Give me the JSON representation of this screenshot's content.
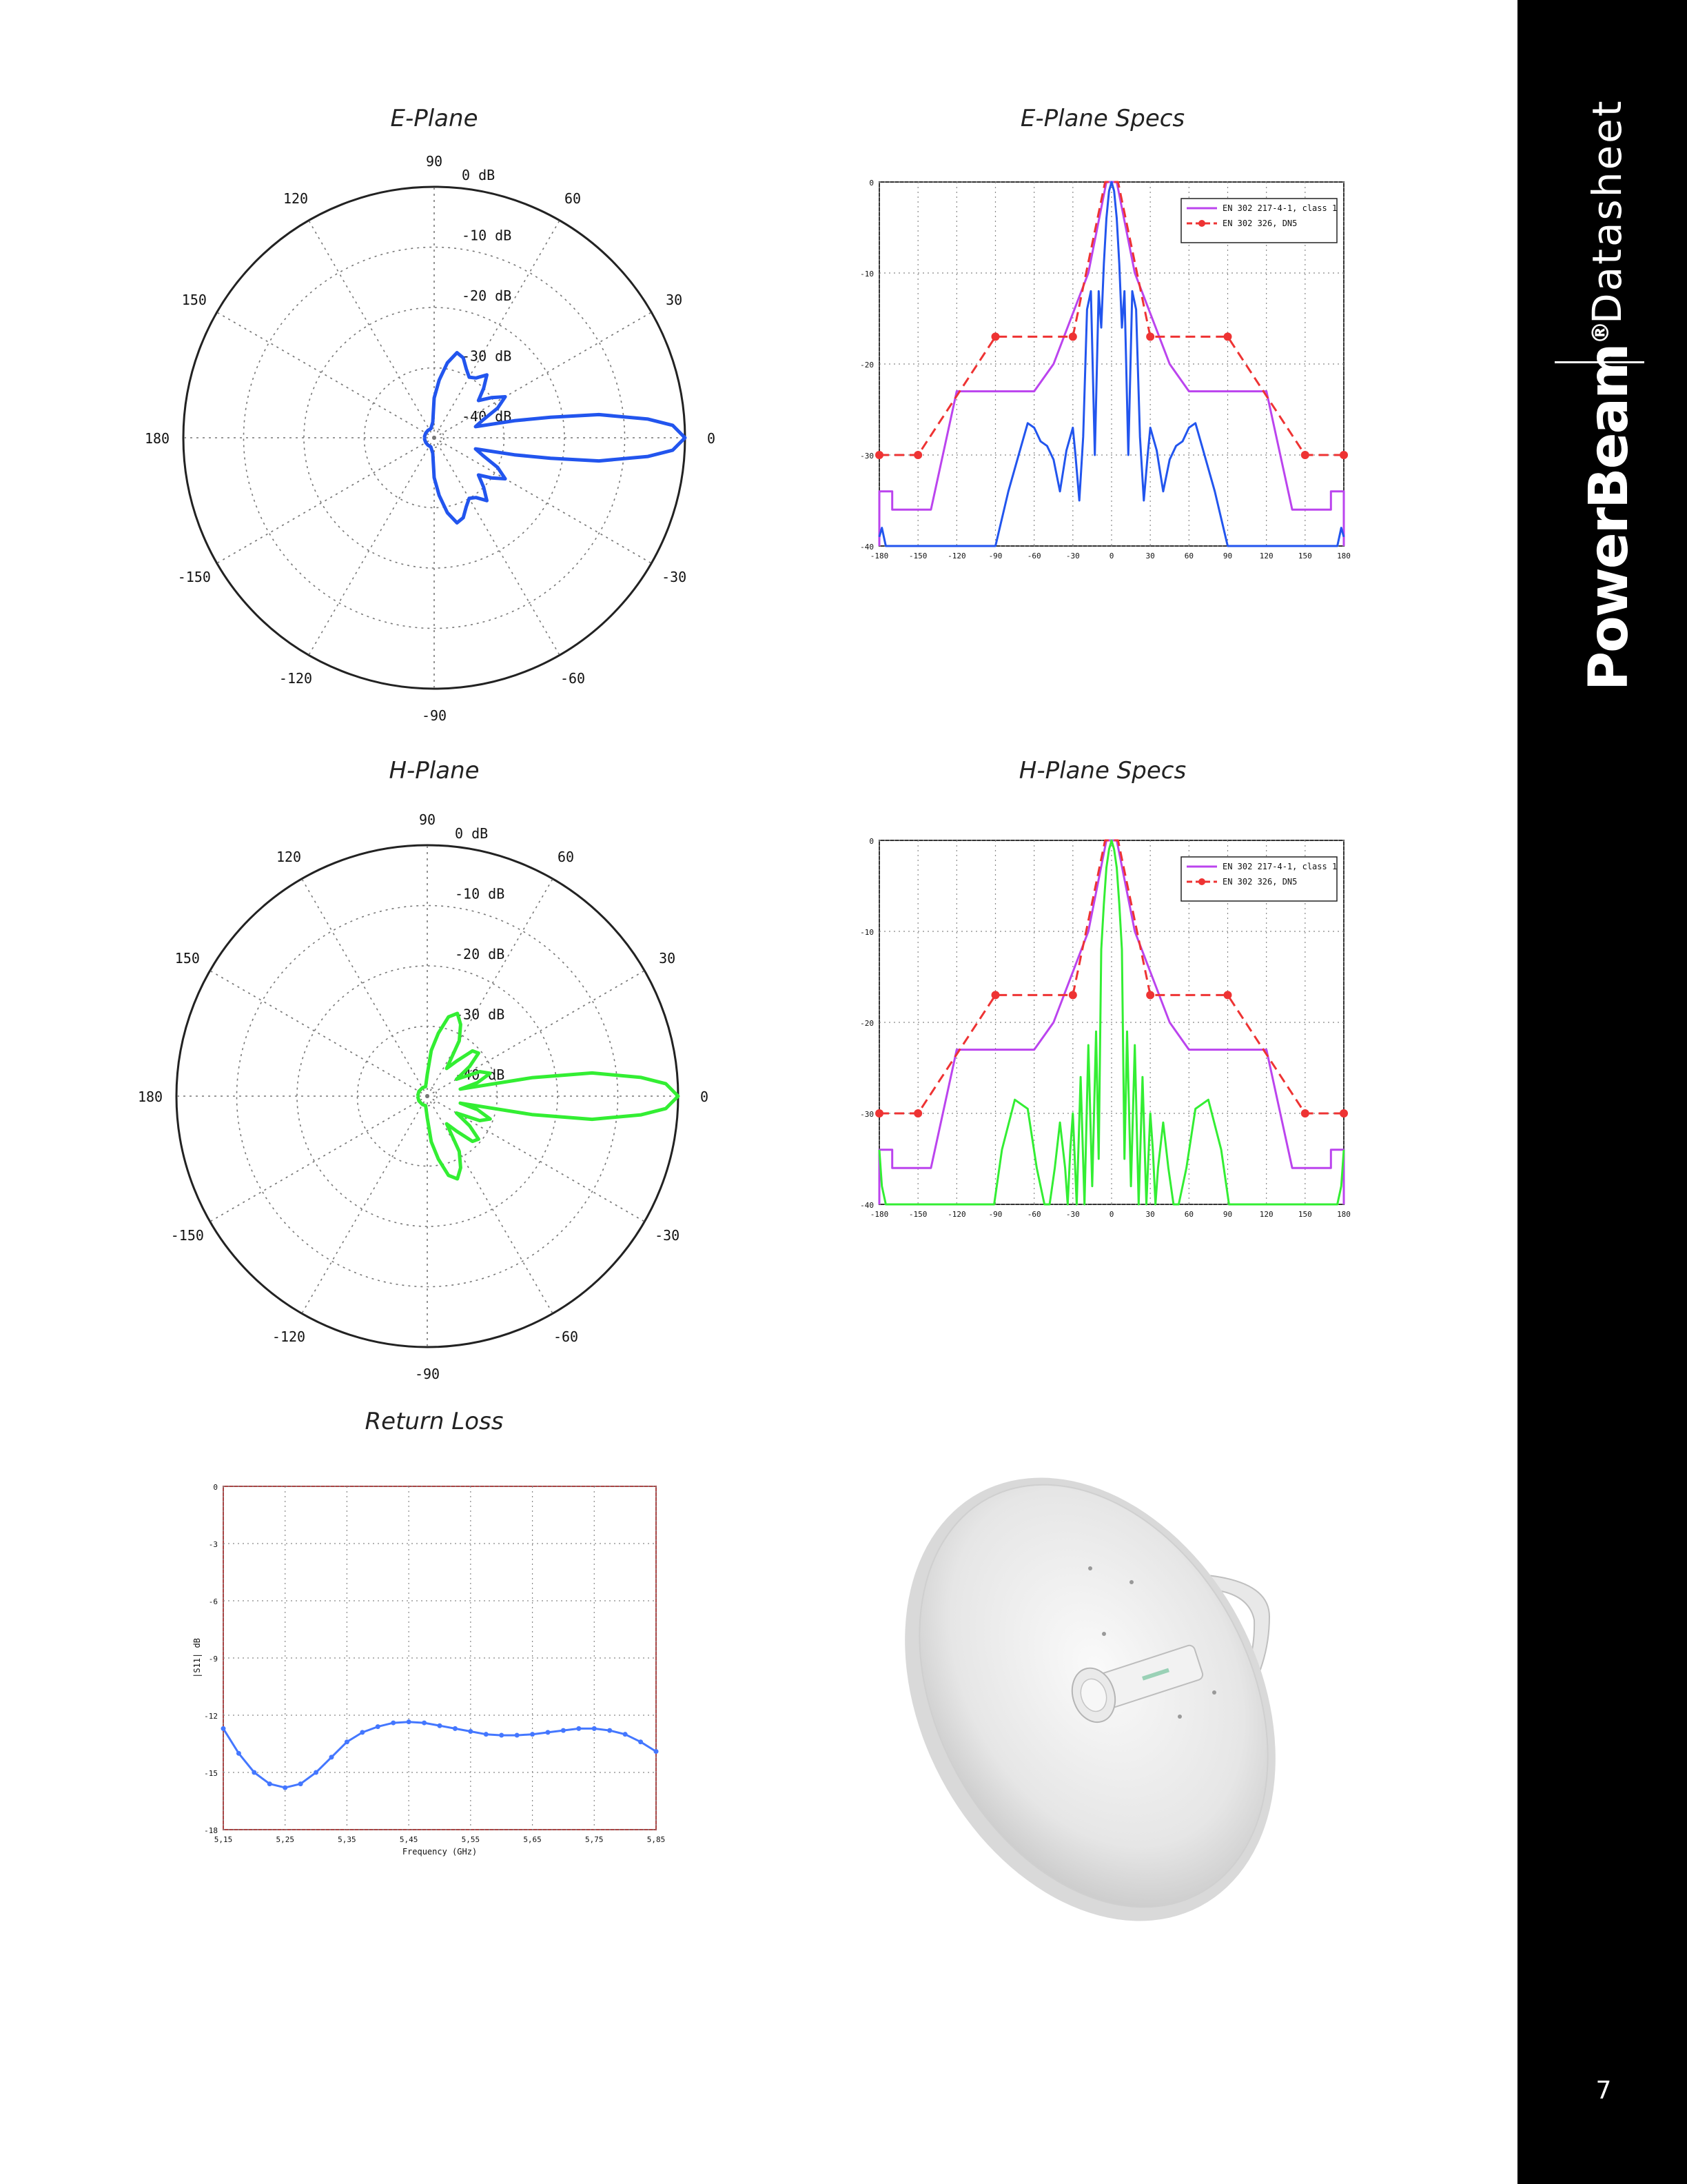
{
  "sidebar": {
    "section": "Datasheet",
    "brand": "PowerBeam",
    "brand_mark": "®",
    "page_number": "7",
    "background": "#000000"
  },
  "product_image": {
    "icon": "dish-antenna-icon"
  },
  "chart_data": [
    {
      "id": "e-plane",
      "type": "polar",
      "title": "E-Plane",
      "angle_labels": [
        "90",
        "60",
        "30",
        "0",
        "-30",
        "-60",
        "-90",
        "-120",
        "-150",
        "180",
        "150",
        "120"
      ],
      "angle_values": [
        90,
        60,
        30,
        0,
        -30,
        -60,
        -90,
        -120,
        -150,
        180,
        150,
        120
      ],
      "ring_labels": [
        "0 dB",
        "-10 dB",
        "-20 dB",
        "-30 dB",
        "-40 dB"
      ],
      "ring_values": [
        0,
        -10,
        -20,
        -30,
        -40
      ],
      "r_range": [
        -40,
        0
      ],
      "series": [
        {
          "color": "#2255ee",
          "angles": [
            -180,
            -170,
            -150,
            -130,
            -110,
            -95,
            -90,
            -85,
            -80,
            -75,
            -70,
            -65,
            -60,
            -55,
            -50,
            -45,
            -40,
            -35,
            -30,
            -25,
            -20,
            -15,
            -12,
            -10,
            -8,
            -5,
            -3,
            0,
            3,
            5,
            8,
            10,
            12,
            15,
            20,
            25,
            30,
            35,
            40,
            45,
            50,
            55,
            60,
            65,
            70,
            75,
            80,
            85,
            90,
            95,
            110,
            130,
            150,
            170,
            180
          ],
          "gain_db": [
            -40,
            -40,
            -40,
            -40,
            -40,
            -39,
            -35,
            -32,
            -29,
            -27,
            -27.5,
            -29,
            -30,
            -29.5,
            -28,
            -30,
            -32,
            -30,
            -28,
            -30,
            -33,
            -34.5,
            -28,
            -22,
            -14,
            -6,
            -2,
            0,
            -2,
            -6,
            -14,
            -22,
            -28,
            -34.5,
            -33,
            -30,
            -28,
            -30,
            -32,
            -30,
            -28,
            -29.5,
            -30,
            -29,
            -27.5,
            -27,
            -29,
            -32,
            -35,
            -39,
            -40,
            -40,
            -40,
            -40,
            -40
          ]
        }
      ]
    },
    {
      "id": "h-plane",
      "type": "polar",
      "title": "H-Plane",
      "angle_labels": [
        "90",
        "60",
        "30",
        "0",
        "-30",
        "-60",
        "-90",
        "-120",
        "-150",
        "180",
        "150",
        "120"
      ],
      "angle_values": [
        90,
        60,
        30,
        0,
        -30,
        -60,
        -90,
        -120,
        -150,
        180,
        150,
        120
      ],
      "ring_labels": [
        "0 dB",
        "-10 dB",
        "-20 dB",
        "-30 dB",
        "-40 dB"
      ],
      "ring_values": [
        0,
        -10,
        -20,
        -30,
        -40
      ],
      "r_range": [
        -40,
        0
      ],
      "series": [
        {
          "color": "#33ee33",
          "angles": [
            -180,
            -150,
            -120,
            -100,
            -90,
            -85,
            -80,
            -75,
            -70,
            -65,
            -60,
            -55,
            -50,
            -45,
            -40,
            -35,
            -30,
            -25,
            -20,
            -15,
            -12,
            -10,
            -8,
            -5,
            -3,
            0,
            3,
            5,
            8,
            10,
            12,
            15,
            20,
            25,
            30,
            35,
            40,
            45,
            50,
            55,
            60,
            65,
            70,
            75,
            80,
            85,
            90,
            100,
            120,
            150,
            180
          ],
          "gain_db": [
            -40,
            -40,
            -40,
            -40,
            -38,
            -34,
            -31,
            -28,
            -27,
            -28.5,
            -31,
            -36,
            -34,
            -31,
            -30.5,
            -33,
            -36,
            -32,
            -30.5,
            -33,
            -36,
            -24,
            -14,
            -6,
            -2,
            0,
            -2,
            -6,
            -14,
            -24,
            -36,
            -33,
            -30.5,
            -32,
            -36,
            -33,
            -30.5,
            -31,
            -34,
            -36,
            -31,
            -28.5,
            -27,
            -28,
            -31,
            -34,
            -38,
            -40,
            -40,
            -40,
            -40
          ]
        }
      ]
    },
    {
      "id": "e-plane-specs",
      "type": "line",
      "title": "E-Plane Specs",
      "x_ticks": [
        -180,
        -150,
        -120,
        -90,
        -60,
        -30,
        0,
        30,
        60,
        90,
        120,
        150,
        180
      ],
      "y_ticks": [
        0,
        -10,
        -20,
        -30,
        -40
      ],
      "xlim": [
        -180,
        180
      ],
      "ylim": [
        -40,
        0
      ],
      "legend_position": "top-right",
      "grid": true,
      "series": [
        {
          "name": "EN 302 217-4-1, class 1",
          "color": "#bb44ee",
          "dash": false,
          "markers": false,
          "x": [
            -180,
            -180,
            -170,
            -170,
            -140,
            -120,
            -90,
            -60,
            -45,
            -18,
            -4,
            4,
            18,
            45,
            60,
            90,
            120,
            140,
            170,
            170,
            180,
            180
          ],
          "y": [
            -40,
            -34,
            -34,
            -36,
            -36,
            -23,
            -23,
            -23,
            -20,
            -10,
            0,
            0,
            -10,
            -20,
            -23,
            -23,
            -23,
            -36,
            -36,
            -34,
            -34,
            -40
          ]
        },
        {
          "name": "EN 302 326, DN5",
          "color": "#ee3333",
          "dash": true,
          "markers": true,
          "x": [
            -180,
            -150,
            -90,
            -30,
            -5,
            5,
            30,
            90,
            150,
            180
          ],
          "y": [
            -30,
            -30,
            -17,
            -17,
            0,
            0,
            -17,
            -17,
            -30,
            -30
          ],
          "marker_x": [
            -180,
            -150,
            -90,
            -30,
            30,
            90,
            150,
            180
          ],
          "marker_y": [
            -30,
            -30,
            -17,
            -17,
            -17,
            -17,
            -30,
            -30
          ]
        },
        {
          "name": "",
          "color": "#2255ee",
          "dash": false,
          "markers": false,
          "x": [
            -180,
            -178,
            -175,
            -172,
            -90,
            -80,
            -70,
            -65,
            -60,
            -55,
            -50,
            -45,
            -40,
            -35,
            -30,
            -28,
            -25,
            -22,
            -19,
            -16,
            -13,
            -10,
            -8,
            -6,
            -4,
            -2,
            0,
            2,
            4,
            6,
            8,
            10,
            13,
            16,
            19,
            22,
            25,
            28,
            30,
            35,
            40,
            45,
            50,
            55,
            60,
            65,
            70,
            80,
            90,
            172,
            175,
            178,
            180
          ],
          "y": [
            -39,
            -38,
            -40,
            -40,
            -40,
            -34,
            -29,
            -26.5,
            -27,
            -28.5,
            -29,
            -30.5,
            -34,
            -29.5,
            -27,
            -30,
            -35,
            -28,
            -14,
            -12,
            -30,
            -12,
            -16,
            -9,
            -4,
            -1,
            0,
            -1,
            -4,
            -9,
            -16,
            -12,
            -30,
            -12,
            -14,
            -28,
            -35,
            -30,
            -27,
            -29.5,
            -34,
            -30.5,
            -29,
            -28.5,
            -27,
            -26.5,
            -29,
            -34,
            -40,
            -40,
            -40,
            -38,
            -39
          ]
        }
      ]
    },
    {
      "id": "h-plane-specs",
      "type": "line",
      "title": "H-Plane Specs",
      "x_ticks": [
        -180,
        -150,
        -120,
        -90,
        -60,
        -30,
        0,
        30,
        60,
        90,
        120,
        150,
        180
      ],
      "y_ticks": [
        0,
        -10,
        -20,
        -30,
        -40
      ],
      "xlim": [
        -180,
        180
      ],
      "ylim": [
        -40,
        0
      ],
      "legend_position": "top-right",
      "grid": true,
      "series": [
        {
          "name": "EN 302 217-4-1, class 1",
          "color": "#bb44ee",
          "dash": false,
          "markers": false,
          "x": [
            -180,
            -180,
            -170,
            -170,
            -140,
            -120,
            -90,
            -60,
            -45,
            -18,
            -4,
            4,
            18,
            45,
            60,
            90,
            120,
            140,
            170,
            170,
            180,
            180
          ],
          "y": [
            -40,
            -34,
            -34,
            -36,
            -36,
            -23,
            -23,
            -23,
            -20,
            -10,
            0,
            0,
            -10,
            -20,
            -23,
            -23,
            -23,
            -36,
            -36,
            -34,
            -34,
            -40
          ]
        },
        {
          "name": "EN 302 326, DN5",
          "color": "#ee3333",
          "dash": true,
          "markers": true,
          "x": [
            -180,
            -150,
            -90,
            -30,
            -5,
            5,
            30,
            90,
            150,
            180
          ],
          "y": [
            -30,
            -30,
            -17,
            -17,
            0,
            0,
            -17,
            -17,
            -30,
            -30
          ],
          "marker_x": [
            -180,
            -150,
            -90,
            -30,
            30,
            90,
            150,
            180
          ],
          "marker_y": [
            -30,
            -30,
            -17,
            -17,
            -17,
            -17,
            -30,
            -30
          ]
        },
        {
          "name": "",
          "color": "#33ee33",
          "dash": false,
          "markers": false,
          "x": [
            -180,
            -178,
            -175,
            -91,
            -85,
            -75,
            -65,
            -58,
            -52,
            -48,
            -44,
            -40,
            -36,
            -34,
            -32,
            -30,
            -27,
            -24,
            -21,
            -18,
            -15,
            -12,
            -10,
            -8,
            -6,
            -4,
            -2,
            0,
            2,
            4,
            6,
            8,
            10,
            12,
            15,
            18,
            21,
            24,
            27,
            30,
            32,
            34,
            36,
            40,
            44,
            48,
            52,
            58,
            65,
            75,
            85,
            91,
            175,
            178,
            180
          ],
          "y": [
            -34,
            -38,
            -40,
            -40,
            -34,
            -28.5,
            -29.5,
            -36,
            -40,
            -40,
            -36,
            -31,
            -36,
            -40,
            -34,
            -30,
            -40,
            -26,
            -40,
            -22.5,
            -38,
            -21,
            -35,
            -12,
            -7,
            -3,
            -1,
            0,
            -1,
            -3,
            -7,
            -12,
            -35,
            -21,
            -38,
            -22.5,
            -40,
            -26,
            -40,
            -30,
            -34,
            -40,
            -36,
            -31,
            -36,
            -40,
            -40,
            -36,
            -29.5,
            -28.5,
            -34,
            -40,
            -40,
            -38,
            -34
          ]
        }
      ]
    },
    {
      "id": "return-loss",
      "type": "line",
      "title": "Return Loss",
      "xlabel": "Frequency (GHz)",
      "ylabel": "|S11| dB",
      "x_ticks": [
        5.15,
        5.25,
        5.35,
        5.45,
        5.55,
        5.65,
        5.75,
        5.85
      ],
      "x_tick_labels": [
        "5,15",
        "5,25",
        "5,35",
        "5,45",
        "5,55",
        "5,65",
        "5,75",
        "5,85"
      ],
      "y_ticks": [
        0,
        -3,
        -6,
        -9,
        -12,
        -15,
        -18
      ],
      "xlim": [
        5.15,
        5.85
      ],
      "ylim": [
        -18,
        0
      ],
      "grid": true,
      "series": [
        {
          "name": "",
          "color": "#4477ff",
          "markers": true,
          "x": [
            5.15,
            5.175,
            5.2,
            5.225,
            5.25,
            5.275,
            5.3,
            5.325,
            5.35,
            5.375,
            5.4,
            5.425,
            5.45,
            5.475,
            5.5,
            5.525,
            5.55,
            5.575,
            5.6,
            5.625,
            5.65,
            5.675,
            5.7,
            5.725,
            5.75,
            5.775,
            5.8,
            5.825,
            5.85
          ],
          "y": [
            -12.7,
            -14.0,
            -15.0,
            -15.6,
            -15.8,
            -15.6,
            -15.0,
            -14.2,
            -13.4,
            -12.9,
            -12.6,
            -12.4,
            -12.35,
            -12.4,
            -12.55,
            -12.7,
            -12.85,
            -13.0,
            -13.05,
            -13.05,
            -13.0,
            -12.9,
            -12.8,
            -12.7,
            -12.7,
            -12.8,
            -13.0,
            -13.4,
            -13.9
          ]
        }
      ]
    }
  ]
}
